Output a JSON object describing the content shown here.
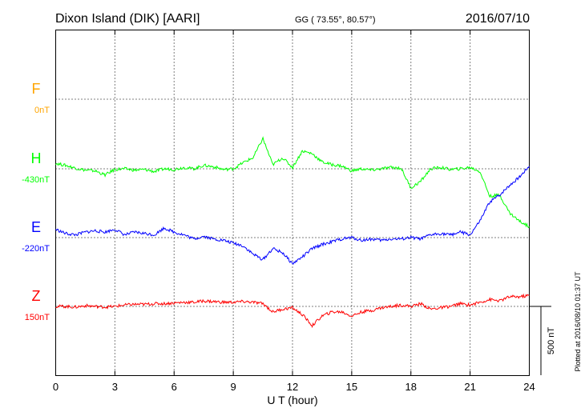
{
  "header": {
    "station": "Dixon Island (DIK)  [AARI]",
    "coords": "GG ( 73.55°,  80.57°)",
    "date": "2016/07/10"
  },
  "footer": {
    "plotted": "Plotted at 2016/08/10 01:37 UT"
  },
  "chart_data": {
    "type": "line",
    "xlabel": "U T (hour)",
    "xlim": [
      0,
      24
    ],
    "xticks": [
      "0",
      "3",
      "6",
      "9",
      "12",
      "15",
      "18",
      "21",
      "24"
    ],
    "scale_bar": "500 nT",
    "series": [
      {
        "name": "F",
        "offset": "0nT",
        "color": "#ffa500",
        "x": [],
        "y": []
      },
      {
        "name": "H",
        "offset": "-430nT",
        "color": "#00ff00",
        "x": [
          0,
          0.5,
          1,
          1.5,
          2,
          2.5,
          3,
          3.5,
          4,
          4.5,
          5,
          5.5,
          6,
          6.5,
          7,
          7.5,
          8,
          8.5,
          9,
          9.5,
          10,
          10.5,
          11,
          11.5,
          12,
          12.5,
          13,
          13.5,
          14,
          14.5,
          15,
          15.5,
          16,
          16.5,
          17,
          17.5,
          18,
          18.5,
          19,
          19.5,
          20,
          20.5,
          21,
          21.5,
          22,
          22.5,
          23,
          23.5,
          24
        ],
        "y": [
          40,
          25,
          5,
          -10,
          -15,
          -45,
          -5,
          0,
          -10,
          -5,
          -20,
          0,
          -5,
          10,
          0,
          25,
          15,
          -5,
          0,
          45,
          80,
          220,
          30,
          80,
          10,
          130,
          110,
          50,
          30,
          20,
          -15,
          0,
          -10,
          0,
          10,
          5,
          -140,
          -90,
          0,
          10,
          -5,
          0,
          10,
          -20,
          -200,
          -190,
          -320,
          -380,
          -420
        ]
      },
      {
        "name": "E",
        "offset": "-220nT",
        "color": "#0000ff",
        "x": [
          0,
          0.5,
          1,
          1.5,
          2,
          2.5,
          3,
          3.5,
          4,
          4.5,
          5,
          5.5,
          6,
          6.5,
          7,
          7.5,
          8,
          8.5,
          9,
          9.5,
          10,
          10.5,
          11,
          11.5,
          12,
          12.5,
          13,
          13.5,
          14,
          14.5,
          15,
          15.5,
          16,
          16.5,
          17,
          17.5,
          18,
          18.5,
          19,
          19.5,
          20,
          20.5,
          21,
          21.5,
          22,
          22.5,
          23,
          23.5,
          24
        ],
        "y": [
          60,
          30,
          20,
          40,
          50,
          40,
          60,
          20,
          40,
          30,
          20,
          70,
          40,
          20,
          -10,
          10,
          -10,
          -20,
          -40,
          -60,
          -120,
          -160,
          -80,
          -110,
          -190,
          -140,
          -80,
          -50,
          -30,
          -10,
          0,
          -20,
          -10,
          -20,
          -10,
          -10,
          0,
          -10,
          20,
          30,
          20,
          40,
          20,
          120,
          260,
          310,
          380,
          440,
          520
        ]
      },
      {
        "name": "Z",
        "offset": "150nT",
        "color": "#ff0000",
        "x": [
          0,
          0.5,
          1,
          1.5,
          2,
          2.5,
          3,
          3.5,
          4,
          4.5,
          5,
          5.5,
          6,
          6.5,
          7,
          7.5,
          8,
          8.5,
          9,
          9.5,
          10,
          10.5,
          11,
          11.5,
          12,
          12.5,
          13,
          13.5,
          14,
          14.5,
          15,
          15.5,
          16,
          16.5,
          17,
          17.5,
          18,
          18.5,
          19,
          19.5,
          20,
          20.5,
          21,
          21.5,
          22,
          22.5,
          23,
          23.5,
          24
        ],
        "y": [
          0,
          0,
          -5,
          5,
          0,
          -5,
          0,
          10,
          15,
          15,
          20,
          20,
          25,
          30,
          30,
          40,
          35,
          30,
          30,
          35,
          30,
          20,
          -40,
          -20,
          -10,
          -60,
          -140,
          -70,
          -40,
          -40,
          -70,
          -40,
          -30,
          -10,
          0,
          10,
          0,
          20,
          -20,
          -10,
          0,
          20,
          10,
          30,
          50,
          40,
          70,
          70,
          80
        ]
      }
    ]
  }
}
